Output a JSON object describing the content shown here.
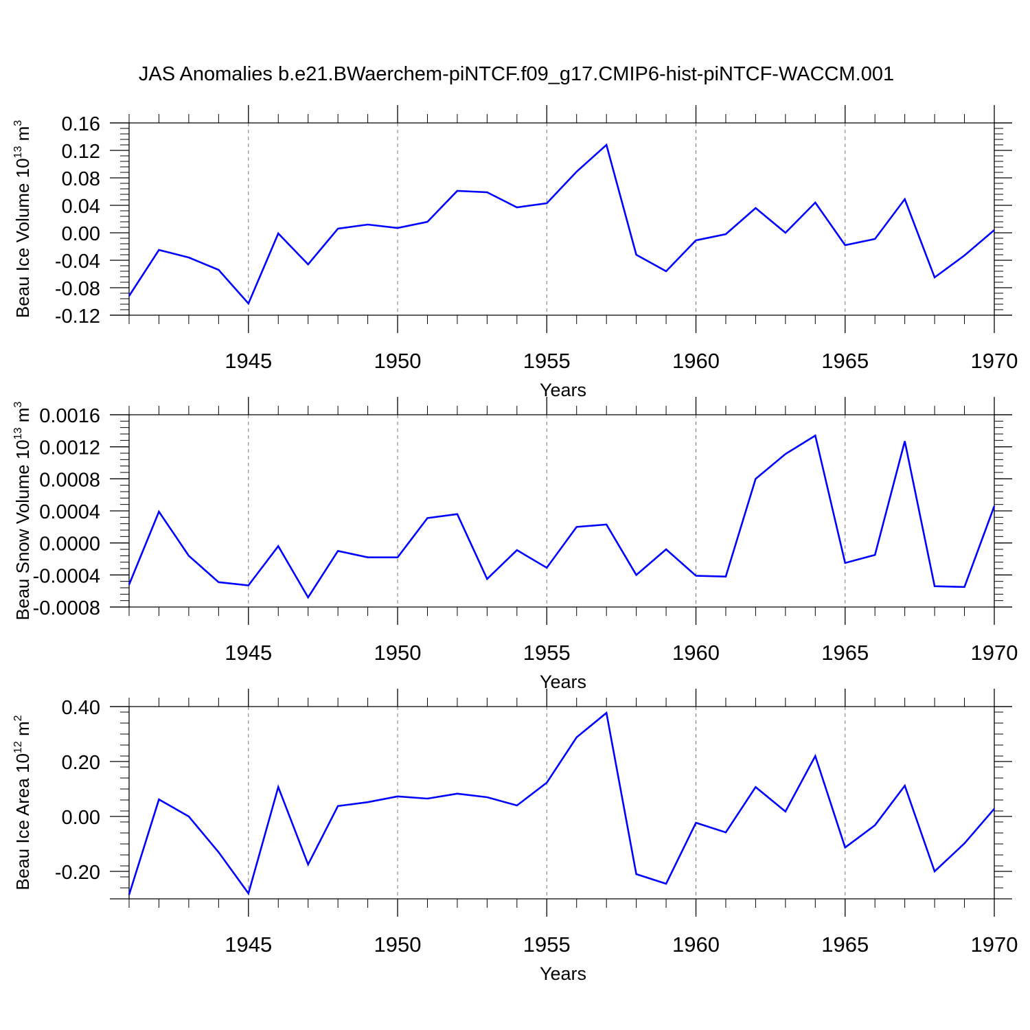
{
  "figure_title": "JAS Anomalies b.e21.BWaerchem-piNTCF.f09_g17.CMIP6-hist-piNTCF-WACCM.001",
  "colors": {
    "series": "#0000ff",
    "axes": "#000000",
    "grid": "#777777"
  },
  "chart_data": [
    {
      "type": "line",
      "title": "",
      "xlabel": "Years",
      "ylabel": "Beau Ice Volume 10",
      "ylabel_sup": "13",
      "ylabel_unit": " m",
      "ylabel_unit_sup": "3",
      "xlim": [
        1941,
        1970
      ],
      "ylim": [
        -0.12,
        0.16
      ],
      "yticks": [
        -0.12,
        -0.08,
        -0.04,
        0.0,
        0.04,
        0.08,
        0.12,
        0.16
      ],
      "ytick_labels": [
        "-0.12",
        "-0.08",
        "-0.04",
        "0.00",
        "0.04",
        "0.08",
        "0.12",
        "0.16"
      ],
      "xticks": [
        1945,
        1950,
        1955,
        1960,
        1965,
        1970
      ],
      "xtick_labels": [
        "1945",
        "1950",
        "1955",
        "1960",
        "1965",
        "1970"
      ],
      "grid": "dashed vertical at major x ticks",
      "x": [
        1941,
        1942,
        1943,
        1944,
        1945,
        1946,
        1947,
        1948,
        1949,
        1950,
        1951,
        1952,
        1953,
        1954,
        1955,
        1956,
        1957,
        1958,
        1959,
        1960,
        1961,
        1962,
        1963,
        1964,
        1965,
        1966,
        1967,
        1968,
        1969,
        1970
      ],
      "series": [
        {
          "values": [
            -0.092,
            -0.025,
            -0.036,
            -0.054,
            -0.103,
            -0.001,
            -0.046,
            0.006,
            0.012,
            0.007,
            0.016,
            0.061,
            0.059,
            0.037,
            0.043,
            0.089,
            0.128,
            -0.032,
            -0.056,
            -0.011,
            -0.002,
            0.036,
            0.0,
            0.044,
            -0.018,
            -0.009,
            0.049,
            -0.065,
            -0.033,
            0.004
          ]
        }
      ]
    },
    {
      "type": "line",
      "title": "",
      "xlabel": "Years",
      "ylabel": "Beau Snow Volume 10",
      "ylabel_sup": "13",
      "ylabel_unit": " m",
      "ylabel_unit_sup": "3",
      "xlim": [
        1941,
        1970
      ],
      "ylim": [
        -0.0008,
        0.0016
      ],
      "yticks": [
        -0.0008,
        -0.0004,
        0.0,
        0.0004,
        0.0008,
        0.0012,
        0.0016
      ],
      "ytick_labels": [
        "-0.0008",
        "-0.0004",
        "0.0000",
        "0.0004",
        "0.0008",
        "0.0012",
        "0.0016"
      ],
      "xticks": [
        1945,
        1950,
        1955,
        1960,
        1965,
        1970
      ],
      "xtick_labels": [
        "1945",
        "1950",
        "1955",
        "1960",
        "1965",
        "1970"
      ],
      "grid": "dashed vertical at major x ticks",
      "x": [
        1941,
        1942,
        1943,
        1944,
        1945,
        1946,
        1947,
        1948,
        1949,
        1950,
        1951,
        1952,
        1953,
        1954,
        1955,
        1956,
        1957,
        1958,
        1959,
        1960,
        1961,
        1962,
        1963,
        1964,
        1965,
        1966,
        1967,
        1968,
        1969,
        1970
      ],
      "series": [
        {
          "values": [
            -0.00052,
            0.00039,
            -0.00016,
            -0.00049,
            -0.00053,
            -4e-05,
            -0.00068,
            -0.0001,
            -0.00018,
            -0.00018,
            0.00031,
            0.00036,
            -0.00045,
            -9e-05,
            -0.00031,
            0.0002,
            0.00023,
            -0.0004,
            -8e-05,
            -0.00041,
            -0.00042,
            0.0008,
            0.00111,
            0.00134,
            -0.00025,
            -0.00015,
            0.00127,
            -0.00054,
            -0.00055,
            0.00046
          ]
        }
      ]
    },
    {
      "type": "line",
      "title": "",
      "xlabel": "Years",
      "ylabel": "Beau Ice Area 10",
      "ylabel_sup": "12",
      "ylabel_unit": " m",
      "ylabel_unit_sup": "2",
      "xlim": [
        1941,
        1970
      ],
      "ylim": [
        -0.3,
        0.4
      ],
      "yticks": [
        -0.2,
        0.0,
        0.2,
        0.4
      ],
      "ytick_labels": [
        "-0.20",
        "0.00",
        "0.20",
        "0.40"
      ],
      "xticks": [
        1945,
        1950,
        1955,
        1960,
        1965,
        1970
      ],
      "xtick_labels": [
        "1945",
        "1950",
        "1955",
        "1960",
        "1965",
        "1970"
      ],
      "grid": "dashed vertical at major x ticks",
      "x": [
        1941,
        1942,
        1943,
        1944,
        1945,
        1946,
        1947,
        1948,
        1949,
        1950,
        1951,
        1952,
        1953,
        1954,
        1955,
        1956,
        1957,
        1958,
        1959,
        1960,
        1961,
        1962,
        1963,
        1964,
        1965,
        1966,
        1967,
        1968,
        1969,
        1970
      ],
      "series": [
        {
          "values": [
            -0.285,
            0.062,
            0.0,
            -0.13,
            -0.28,
            0.107,
            -0.175,
            0.038,
            0.052,
            0.073,
            0.065,
            0.083,
            0.07,
            0.04,
            0.123,
            0.288,
            0.377,
            -0.21,
            -0.245,
            -0.023,
            -0.058,
            0.107,
            0.018,
            0.22,
            -0.113,
            -0.032,
            0.112,
            -0.2,
            -0.098,
            0.028
          ]
        }
      ]
    }
  ]
}
